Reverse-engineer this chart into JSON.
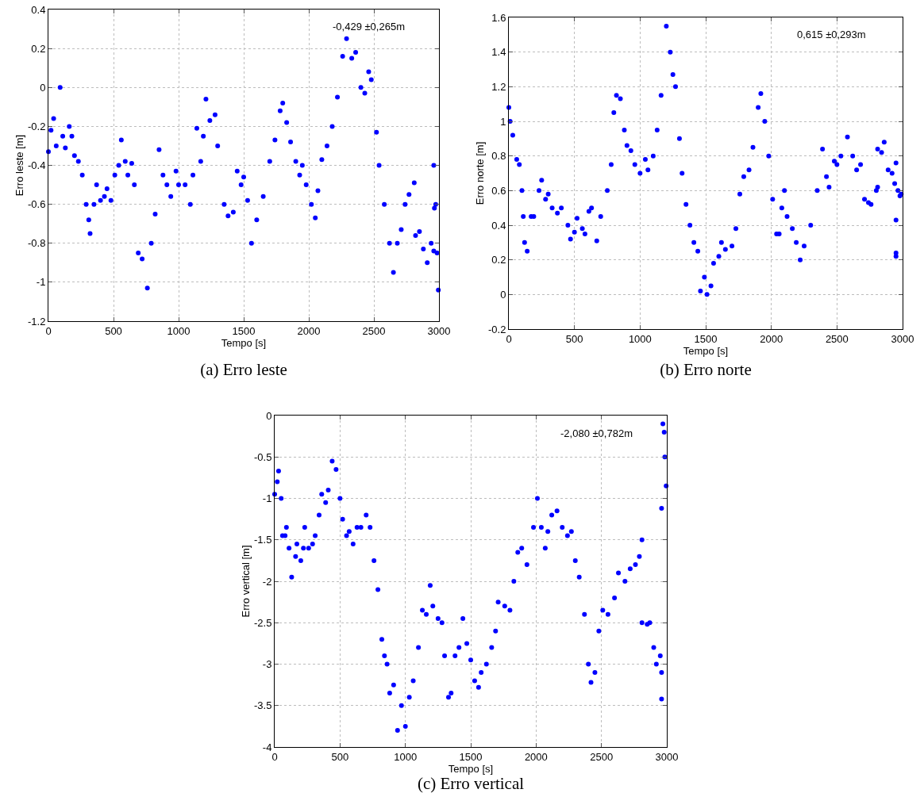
{
  "chart_data": [
    {
      "type": "scatter",
      "title": "(a) Erro leste",
      "xlabel": "Tempo [s]",
      "ylabel": "Erro leste [m]",
      "annotations": [
        "-0,429 ±0,265m"
      ],
      "color": "#0000ff",
      "marker": "circle",
      "grid": true,
      "xlim": [
        0,
        3000
      ],
      "xticks": [
        0,
        500,
        1000,
        1500,
        2000,
        2500,
        3000
      ],
      "ylim": [
        -1.2,
        0.4
      ],
      "yticks": [
        -1.2,
        -1,
        -0.8,
        -0.6,
        -0.4,
        -0.2,
        0,
        0.2,
        0.4
      ],
      "x": [
        0,
        20,
        40,
        60,
        90,
        110,
        130,
        160,
        180,
        200,
        230,
        260,
        290,
        310,
        320,
        350,
        370,
        400,
        430,
        450,
        480,
        510,
        540,
        560,
        590,
        610,
        640,
        660,
        690,
        720,
        760,
        790,
        820,
        850,
        880,
        910,
        940,
        980,
        1000,
        1050,
        1090,
        1110,
        1140,
        1170,
        1190,
        1210,
        1240,
        1280,
        1300,
        1350,
        1380,
        1420,
        1450,
        1480,
        1500,
        1530,
        1560,
        1600,
        1650,
        1700,
        1740,
        1780,
        1800,
        1830,
        1860,
        1900,
        1930,
        1950,
        1980,
        2020,
        2050,
        2070,
        2100,
        2140,
        2180,
        2220,
        2260,
        2290,
        2330,
        2360,
        2400,
        2430,
        2460,
        2480,
        2520,
        2540,
        2580,
        2620,
        2650,
        2680,
        2710,
        2740,
        2770,
        2810,
        2820,
        2850,
        2880,
        2910,
        2940,
        2960,
        2960,
        2965,
        2975,
        2985,
        2995
      ],
      "values": [
        -0.33,
        -0.22,
        -0.16,
        -0.3,
        0,
        -0.25,
        -0.31,
        -0.2,
        -0.25,
        -0.35,
        -0.38,
        -0.45,
        -0.6,
        -0.68,
        -0.75,
        -0.6,
        -0.5,
        -0.58,
        -0.56,
        -0.52,
        -0.58,
        -0.45,
        -0.4,
        -0.27,
        -0.38,
        -0.45,
        -0.39,
        -0.5,
        -0.85,
        -0.88,
        -1.03,
        -0.8,
        -0.65,
        -0.32,
        -0.45,
        -0.5,
        -0.56,
        -0.43,
        -0.5,
        -0.5,
        -0.6,
        -0.45,
        -0.21,
        -0.38,
        -0.25,
        -0.06,
        -0.17,
        -0.14,
        -0.3,
        -0.6,
        -0.66,
        -0.64,
        -0.43,
        -0.5,
        -0.46,
        -0.58,
        -0.8,
        -0.68,
        -0.56,
        -0.38,
        -0.27,
        -0.12,
        -0.08,
        -0.18,
        -0.28,
        -0.38,
        -0.45,
        -0.4,
        -0.5,
        -0.6,
        -0.67,
        -0.53,
        -0.37,
        -0.3,
        -0.2,
        -0.05,
        0.16,
        0.25,
        0.15,
        0.18,
        0,
        -0.03,
        0.08,
        0.04,
        -0.23,
        -0.4,
        -0.6,
        -0.8,
        -0.95,
        -0.8,
        -0.73,
        -0.6,
        -0.55,
        -0.49,
        -0.76,
        -0.74,
        -0.83,
        -0.9,
        -0.8,
        -0.84,
        -0.4,
        -0.62,
        -0.6,
        -0.85,
        -1.04
      ]
    },
    {
      "type": "scatter",
      "title": "(b) Erro norte",
      "xlabel": "Tempo [s]",
      "ylabel": "Erro norte [m]",
      "annotations": [
        "0,615 ±0,293m"
      ],
      "color": "#0000ff",
      "marker": "circle",
      "grid": true,
      "xlim": [
        0,
        3000
      ],
      "xticks": [
        0,
        500,
        1000,
        1500,
        2000,
        2500,
        3000
      ],
      "ylim": [
        -0.2,
        1.6
      ],
      "yticks": [
        -0.2,
        0,
        0.2,
        0.4,
        0.6,
        0.8,
        1,
        1.2,
        1.4,
        1.6
      ],
      "x": [
        0,
        10,
        30,
        60,
        80,
        100,
        110,
        120,
        140,
        170,
        190,
        230,
        250,
        280,
        300,
        330,
        370,
        400,
        450,
        470,
        500,
        520,
        560,
        580,
        610,
        630,
        670,
        700,
        750,
        780,
        800,
        820,
        850,
        880,
        900,
        930,
        960,
        1000,
        1040,
        1060,
        1100,
        1130,
        1160,
        1200,
        1230,
        1250,
        1270,
        1300,
        1320,
        1350,
        1380,
        1410,
        1440,
        1460,
        1490,
        1510,
        1540,
        1560,
        1600,
        1620,
        1650,
        1700,
        1730,
        1760,
        1790,
        1830,
        1860,
        1900,
        1920,
        1950,
        1980,
        2010,
        2040,
        2060,
        2080,
        2100,
        2120,
        2160,
        2190,
        2220,
        2250,
        2300,
        2350,
        2390,
        2420,
        2440,
        2480,
        2500,
        2530,
        2580,
        2620,
        2650,
        2680,
        2710,
        2740,
        2760,
        2800,
        2810,
        2810,
        2840,
        2860,
        2890,
        2920,
        2940,
        2950,
        2965,
        2980,
        2990,
        2950,
        2950,
        2950
      ],
      "values": [
        1.08,
        1,
        0.92,
        0.78,
        0.75,
        0.6,
        0.45,
        0.3,
        0.25,
        0.45,
        0.45,
        0.6,
        0.66,
        0.55,
        0.58,
        0.5,
        0.47,
        0.5,
        0.4,
        0.32,
        0.36,
        0.44,
        0.38,
        0.35,
        0.48,
        0.5,
        0.31,
        0.45,
        0.6,
        0.75,
        1.05,
        1.15,
        1.13,
        0.95,
        0.86,
        0.83,
        0.75,
        0.7,
        0.78,
        0.72,
        0.8,
        0.95,
        1.15,
        1.55,
        1.4,
        1.27,
        1.2,
        0.9,
        0.7,
        0.52,
        0.4,
        0.3,
        0.25,
        0.02,
        0.1,
        0,
        0.05,
        0.18,
        0.22,
        0.3,
        0.26,
        0.28,
        0.38,
        0.58,
        0.68,
        0.72,
        0.85,
        1.08,
        1.16,
        1,
        0.8,
        0.55,
        0.35,
        0.35,
        0.5,
        0.6,
        0.45,
        0.38,
        0.3,
        0.2,
        0.28,
        0.4,
        0.6,
        0.84,
        0.68,
        0.62,
        0.77,
        0.75,
        0.8,
        0.91,
        0.8,
        0.72,
        0.75,
        0.55,
        0.53,
        0.52,
        0.6,
        0.62,
        0.84,
        0.82,
        0.88,
        0.72,
        0.7,
        0.64,
        0.76,
        0.6,
        0.57,
        0.58,
        0.43,
        0.24,
        0.22
      ]
    },
    {
      "type": "scatter",
      "title": "(c) Erro vertical",
      "xlabel": "Tempo [s]",
      "ylabel": "Erro vertical [m]",
      "annotations": [
        "-2,080 ±0,782m"
      ],
      "color": "#0000ff",
      "marker": "circle",
      "grid": true,
      "xlim": [
        0,
        3000
      ],
      "xticks": [
        0,
        500,
        1000,
        1500,
        2000,
        2500,
        3000
      ],
      "ylim": [
        -4,
        0
      ],
      "yticks": [
        -4,
        -3.5,
        -3,
        -2.5,
        -2,
        -1.5,
        -1,
        -0.5,
        0
      ],
      "x": [
        0,
        20,
        30,
        50,
        60,
        80,
        90,
        110,
        130,
        160,
        170,
        200,
        220,
        230,
        260,
        290,
        310,
        340,
        360,
        390,
        410,
        440,
        470,
        500,
        520,
        550,
        570,
        600,
        630,
        660,
        700,
        730,
        760,
        790,
        820,
        840,
        860,
        880,
        910,
        940,
        970,
        1000,
        1030,
        1060,
        1100,
        1130,
        1160,
        1190,
        1210,
        1250,
        1280,
        1300,
        1330,
        1350,
        1380,
        1410,
        1440,
        1470,
        1500,
        1530,
        1560,
        1580,
        1620,
        1660,
        1690,
        1710,
        1760,
        1800,
        1830,
        1860,
        1890,
        1930,
        1980,
        2010,
        2040,
        2070,
        2090,
        2120,
        2160,
        2200,
        2240,
        2270,
        2300,
        2330,
        2370,
        2400,
        2420,
        2450,
        2480,
        2510,
        2550,
        2600,
        2630,
        2680,
        2720,
        2760,
        2790,
        2810,
        2810,
        2850,
        2870,
        2900,
        2920,
        2950,
        2960,
        2960,
        2960,
        2970,
        2980,
        2985,
        2995
      ],
      "values": [
        -0.95,
        -0.8,
        -0.67,
        -1,
        -1.45,
        -1.45,
        -1.35,
        -1.6,
        -1.95,
        -1.7,
        -1.55,
        -1.75,
        -1.6,
        -1.35,
        -1.6,
        -1.55,
        -1.45,
        -1.2,
        -0.95,
        -1.05,
        -0.9,
        -0.55,
        -0.65,
        -1,
        -1.25,
        -1.45,
        -1.4,
        -1.55,
        -1.35,
        -1.35,
        -1.2,
        -1.35,
        -1.75,
        -2.1,
        -2.7,
        -2.9,
        -3,
        -3.35,
        -3.25,
        -3.8,
        -3.5,
        -3.75,
        -3.4,
        -3.2,
        -2.8,
        -2.35,
        -2.4,
        -2.05,
        -2.3,
        -2.45,
        -2.5,
        -2.9,
        -3.4,
        -3.35,
        -2.9,
        -2.8,
        -2.45,
        -2.75,
        -2.95,
        -3.2,
        -3.28,
        -3.1,
        -3,
        -2.8,
        -2.6,
        -2.25,
        -2.3,
        -2.35,
        -2,
        -1.65,
        -1.6,
        -1.8,
        -1.35,
        -1,
        -1.35,
        -1.6,
        -1.4,
        -1.2,
        -1.15,
        -1.35,
        -1.45,
        -1.4,
        -1.75,
        -1.95,
        -2.4,
        -3,
        -3.22,
        -3.1,
        -2.6,
        -2.35,
        -2.4,
        -2.2,
        -1.9,
        -2,
        -1.85,
        -1.8,
        -1.7,
        -1.5,
        -2.5,
        -2.52,
        -2.5,
        -2.8,
        -3,
        -2.9,
        -3.1,
        -3.42,
        -1.12,
        -0.1,
        -0.2,
        -0.5,
        -0.85
      ]
    }
  ]
}
